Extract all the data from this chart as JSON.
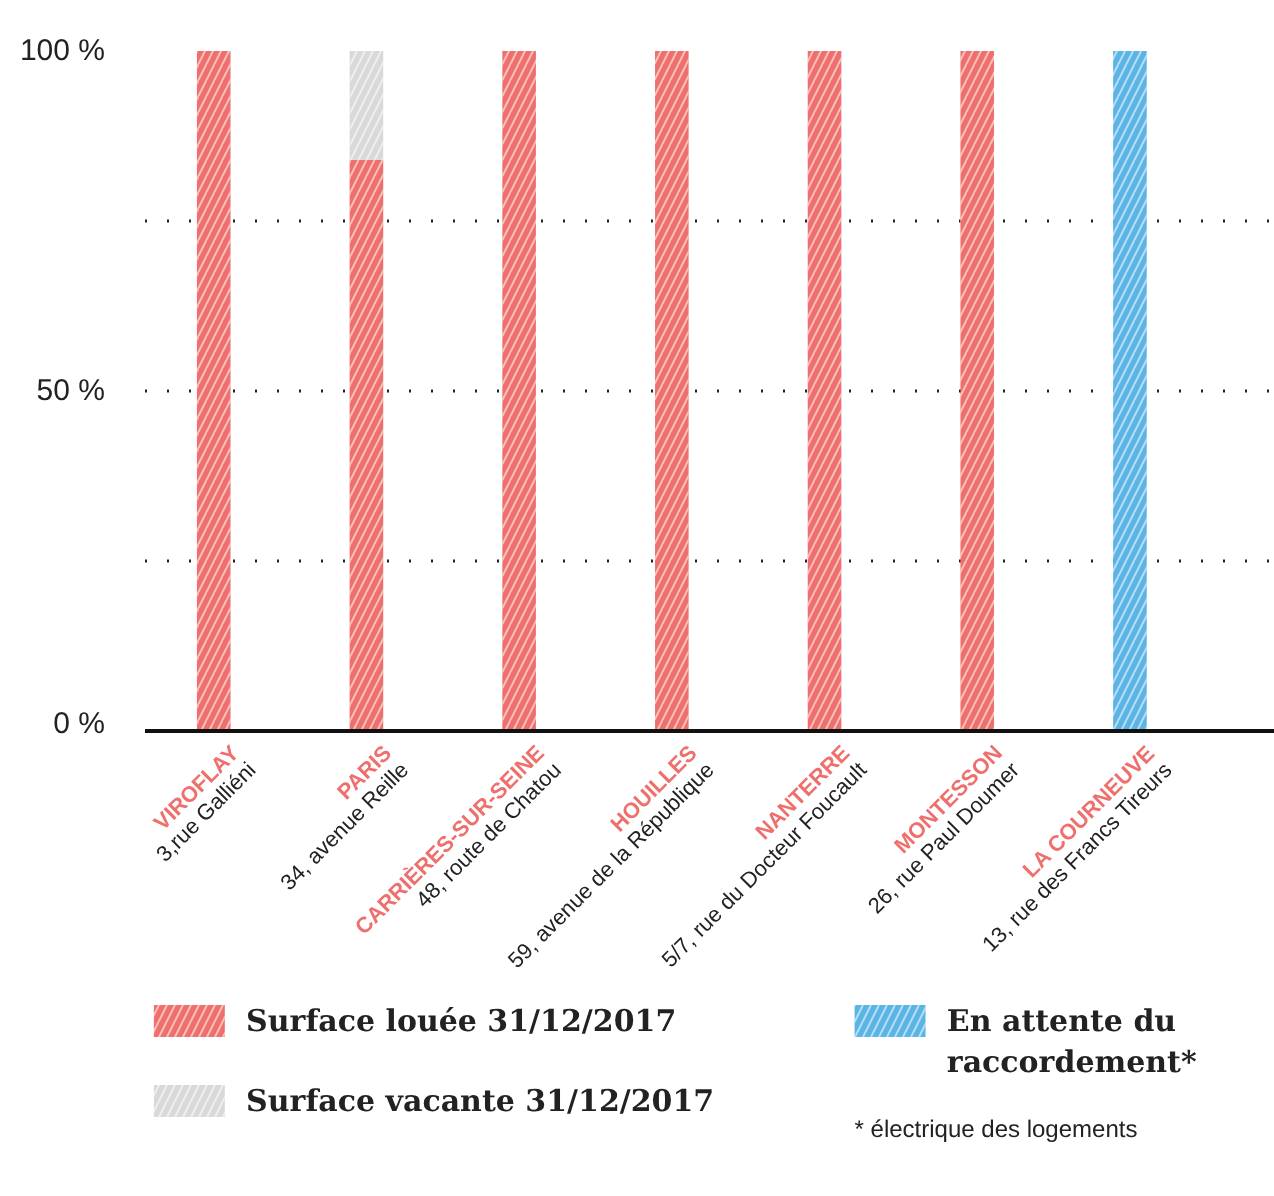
{
  "chart_data": {
    "type": "bar",
    "stacked": true,
    "categories": [
      "VIROFLAY\n3,rue Galliéni",
      "PARIS\n34, avenue Reille",
      "CARRIÈRES-SUR-SEINE\n48, route de Chatou",
      "HOUILLES\n59, avenue de la République",
      "NANTERRE\n5/7, rue du Docteur Foucault",
      "MONTESSON\n26, rue Paul Doumer",
      "LA COURNEUVE\n13, rue des Francs Tireurs"
    ],
    "series": [
      {
        "name": "Surface louée 31/12/2017",
        "color": "#ef6f6c",
        "values": [
          100,
          84,
          100,
          100,
          100,
          100,
          0
        ]
      },
      {
        "name": "Surface vacante 31/12/2017",
        "color": "#d9d9d9",
        "values": [
          0,
          16,
          0,
          0,
          0,
          0,
          0
        ]
      },
      {
        "name": "En attente du raccordement*",
        "color": "#5ab4e5",
        "values": [
          0,
          0,
          0,
          0,
          0,
          0,
          100
        ]
      }
    ],
    "ylim": [
      0,
      100
    ],
    "yticks": [
      {
        "value": 0,
        "label": "0 %"
      },
      {
        "value": 25,
        "label": null
      },
      {
        "value": 50,
        "label": "50 %"
      },
      {
        "value": 75,
        "label": null
      },
      {
        "value": 100,
        "label": "100 %"
      }
    ],
    "grid": "y",
    "legend": "bottom",
    "annotations": [
      "* électrique des logements"
    ]
  }
}
